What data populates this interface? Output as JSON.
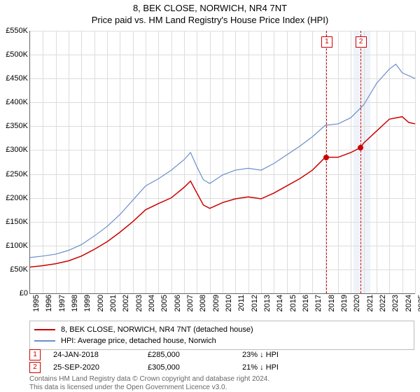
{
  "title": {
    "main": "8, BEK CLOSE, NORWICH, NR4 7NT",
    "sub": "Price paid vs. HM Land Registry's House Price Index (HPI)"
  },
  "chart": {
    "type": "line",
    "background_color": "#ffffff",
    "grid_color": "#dddddd",
    "axis_color": "#666666",
    "ylim": [
      0,
      550
    ],
    "ytick_step": 50,
    "y_prefix": "£",
    "y_suffix": "K",
    "xlim": [
      1995,
      2025
    ],
    "xtick_step": 1,
    "xtick_rotation": -90,
    "tick_fontsize": 11,
    "title_fontsize": 13,
    "highlight_band": {
      "x_start": 2020.2,
      "x_end": 2021.5,
      "color": "#eff3f9"
    },
    "series": [
      {
        "name": "price_paid",
        "label": "8, BEK CLOSE, NORWICH, NR4 7NT (detached house)",
        "color": "#cc0000",
        "line_width": 1.5,
        "x": [
          1995,
          1996,
          1997,
          1998,
          1999,
          2000,
          2001,
          2002,
          2003,
          2004,
          2005,
          2006,
          2007,
          2007.5,
          2008,
          2008.5,
          2009,
          2010,
          2011,
          2012,
          2013,
          2014,
          2015,
          2016,
          2017,
          2018,
          2019,
          2020,
          2020.73,
          2021,
          2022,
          2023,
          2024,
          2024.5,
          2025
        ],
        "y": [
          55,
          58,
          62,
          68,
          78,
          92,
          108,
          128,
          150,
          175,
          188,
          200,
          222,
          235,
          210,
          185,
          178,
          190,
          198,
          202,
          198,
          210,
          225,
          240,
          258,
          285,
          285,
          295,
          305,
          315,
          340,
          365,
          370,
          358,
          355
        ]
      },
      {
        "name": "hpi",
        "label": "HPI: Average price, detached house, Norwich",
        "color": "#6b8fc9",
        "line_width": 1.2,
        "x": [
          1995,
          1996,
          1997,
          1998,
          1999,
          2000,
          2001,
          2002,
          2003,
          2004,
          2005,
          2006,
          2007,
          2007.5,
          2008,
          2008.5,
          2009,
          2010,
          2011,
          2012,
          2013,
          2014,
          2015,
          2016,
          2017,
          2018,
          2019,
          2020,
          2021,
          2022,
          2023,
          2023.5,
          2024,
          2025
        ],
        "y": [
          75,
          78,
          82,
          90,
          102,
          120,
          140,
          165,
          195,
          225,
          240,
          258,
          280,
          295,
          265,
          238,
          230,
          248,
          258,
          262,
          258,
          272,
          290,
          308,
          328,
          352,
          355,
          368,
          395,
          440,
          470,
          480,
          462,
          450
        ]
      }
    ],
    "markers": [
      {
        "n": "1",
        "x": 2018.07,
        "price_y": 285,
        "box_top": 8
      },
      {
        "n": "2",
        "x": 2020.73,
        "price_y": 305,
        "box_top": 8
      }
    ]
  },
  "legend": {
    "border_color": "#bbbbbb",
    "fontsize": 11,
    "items": [
      {
        "color": "#cc0000",
        "label": "8, BEK CLOSE, NORWICH, NR4 7NT (detached house)"
      },
      {
        "color": "#6b8fc9",
        "label": "HPI: Average price, detached house, Norwich"
      }
    ]
  },
  "table": {
    "fontsize": 11,
    "rows": [
      {
        "n": "1",
        "date": "24-JAN-2018",
        "price": "£285,000",
        "pct": "23% ↓ HPI"
      },
      {
        "n": "2",
        "date": "25-SEP-2020",
        "price": "£305,000",
        "pct": "21% ↓ HPI"
      }
    ]
  },
  "footer": {
    "line1": "Contains HM Land Registry data © Crown copyright and database right 2024.",
    "line2": "This data is licensed under the Open Government Licence v3.0.",
    "color": "#676767",
    "fontsize": 10
  }
}
